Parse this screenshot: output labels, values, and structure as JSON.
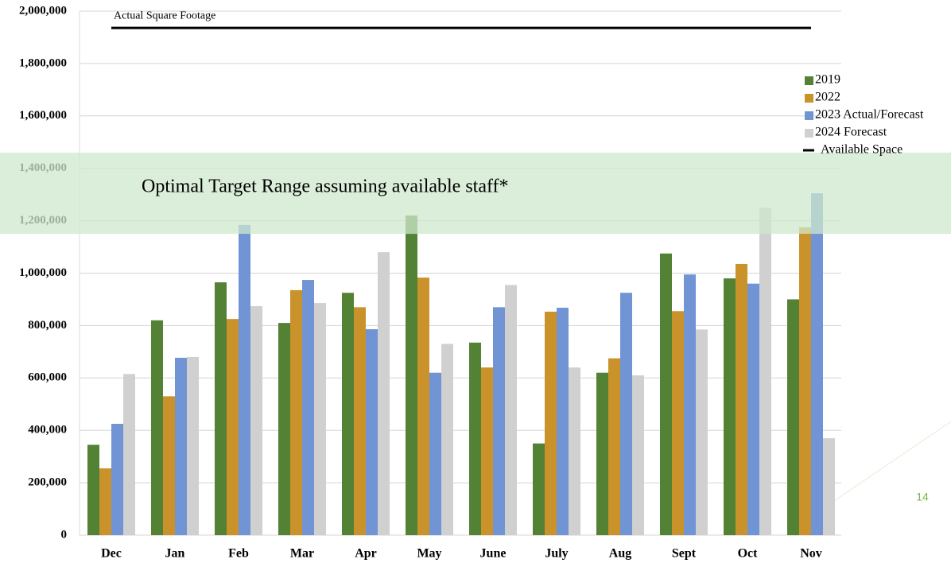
{
  "chart_data": {
    "type": "bar",
    "categories": [
      "Dec",
      "Jan",
      "Feb",
      "Mar",
      "Apr",
      "May",
      "June",
      "July",
      "Aug",
      "Sept",
      "Oct",
      "Nov"
    ],
    "series": [
      {
        "name": "2019",
        "color": "#548235",
        "values": [
          345000,
          820000,
          965000,
          810000,
          925000,
          1220000,
          735000,
          350000,
          620000,
          1075000,
          980000,
          900000
        ]
      },
      {
        "name": "2022",
        "color": "#c9922b",
        "values": [
          255000,
          530000,
          825000,
          935000,
          870000,
          983000,
          640000,
          853000,
          675000,
          855000,
          1035000,
          1175000
        ]
      },
      {
        "name": "2023 Actual/Forecast",
        "color": "#7094d4",
        "values": [
          425000,
          677000,
          1184000,
          974000,
          786000,
          620000,
          870000,
          868000,
          925000,
          995000,
          960000,
          1305000
        ]
      },
      {
        "name": "2024 Forecast",
        "color": "#d0d0d0",
        "values": [
          615000,
          680000,
          874000,
          886000,
          1080000,
          730000,
          955000,
          640000,
          610000,
          785000,
          1250000,
          370000
        ]
      }
    ],
    "reference_line": {
      "name": "Available Space",
      "label": "Actual Square Footage",
      "value": 1936000,
      "color": "#000000"
    },
    "target_band": {
      "label": "Optimal Target Range assuming available staff*",
      "range": [
        1150000,
        1460000
      ],
      "color": "#cfe8cd"
    },
    "ylim": [
      0,
      2000000
    ],
    "yticks": [
      0,
      {
        "value": 200000,
        "label": "200,000"
      },
      {
        "value": 400000,
        "label": "400,000"
      },
      {
        "value": 600000,
        "label": "600,000"
      },
      {
        "value": 800000,
        "label": "800,000"
      },
      {
        "value": 1000000,
        "label": "1,000,000"
      },
      {
        "value": 1200000,
        "label": "1,200,000"
      },
      {
        "value": 1400000,
        "label": "1,400,000"
      },
      {
        "value": 1600000,
        "label": "1,600,000"
      },
      {
        "value": 1800000,
        "label": "1,800,000"
      },
      {
        "value": 2000000,
        "label": "2,000,000"
      }
    ],
    "grid": true,
    "legend": "upper right",
    "page_number": "14"
  }
}
